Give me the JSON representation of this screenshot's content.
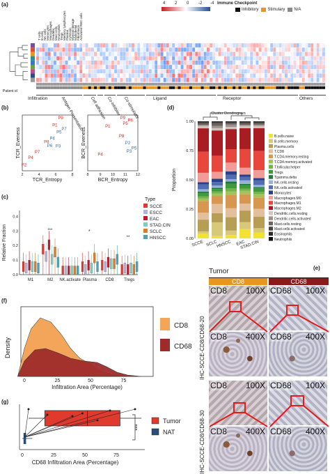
{
  "panels": {
    "a": "(a)",
    "b": "(b)",
    "c": "(c)",
    "d": "(d)",
    "e": "(e)",
    "f": "(f)",
    "g": "(g)"
  },
  "panel_a": {
    "scale_ticks": [
      "4",
      "2",
      "0",
      "-2",
      "-4"
    ],
    "legend_title": "Immune Checkpoint",
    "legend_items": [
      {
        "label": "Inhibitory",
        "color": "#111111"
      },
      {
        "label": "Stimulary",
        "color": "#e8961e"
      },
      {
        "label": "N/A",
        "color": "#8a8a8a"
      }
    ],
    "top_labels": [
      "T cells",
      "B cells",
      "NK cells",
      "Monocytes",
      "Macrophages",
      "Dendritic",
      "Mast cells",
      "Neutrophils",
      "Tregs",
      "Memory lymphocytes",
      "Plasma",
      "Cytotoxic",
      "Myeloid lineage",
      "Endothelial",
      "Fibroblasts",
      "Activated RBC cells"
    ],
    "patient_label": "Patient id",
    "groups": [
      "Infiltration",
      "Antigen Presentation",
      "Cell adhesion",
      "Co-inhibitor",
      "Co-stimulator",
      "Ligand",
      "Receptor",
      "Others"
    ]
  },
  "panel_b": {
    "left": {
      "xlabel": "TCR_Entropy",
      "ylabel": "TCR_Eveness",
      "xticks": [
        "2",
        "4",
        "6",
        "8"
      ],
      "points": [
        {
          "label": "P9",
          "x": 6.6,
          "y": 0.96,
          "group": "red"
        },
        {
          "label": "P1",
          "x": 5.9,
          "y": 0.82,
          "group": "red"
        },
        {
          "label": "P7",
          "x": 7.0,
          "y": 0.74,
          "group": "blue"
        },
        {
          "label": "P5",
          "x": 6.4,
          "y": 0.68,
          "group": "blue"
        },
        {
          "label": "P4",
          "x": 5.6,
          "y": 0.56,
          "group": "blue"
        },
        {
          "label": "P8",
          "x": 4.9,
          "y": 0.49,
          "group": "red"
        },
        {
          "label": "P6",
          "x": 5.3,
          "y": 0.42,
          "group": "blue"
        },
        {
          "label": "P3",
          "x": 6.3,
          "y": 0.41,
          "group": "blue"
        },
        {
          "label": "P7",
          "x": 3.8,
          "y": 0.3,
          "group": "red"
        },
        {
          "label": "P4",
          "x": 3.0,
          "y": 0.19,
          "group": "red"
        },
        {
          "label": "P2",
          "x": 2.2,
          "y": 0.05,
          "group": "red"
        }
      ]
    },
    "right": {
      "xlabel": "BCR_Entropy",
      "ylabel": "BCR_Eveness",
      "xticks": [
        "8",
        "9",
        "10",
        "11",
        "12"
      ],
      "points": [
        {
          "label": "P9",
          "x": 10.8,
          "y": 0.96,
          "group": "red"
        },
        {
          "label": "P6",
          "x": 11.4,
          "y": 0.91,
          "group": "red"
        },
        {
          "label": "P5",
          "x": 11.0,
          "y": 0.85,
          "group": "red"
        },
        {
          "label": "P1",
          "x": 9.6,
          "y": 0.8,
          "group": "red"
        },
        {
          "label": "P8",
          "x": 10.7,
          "y": 0.61,
          "group": "red"
        },
        {
          "label": "P2",
          "x": 11.2,
          "y": 0.47,
          "group": "blue"
        },
        {
          "label": "P5",
          "x": 11.7,
          "y": 0.37,
          "group": "blue"
        },
        {
          "label": "P3",
          "x": 11.3,
          "y": 0.31,
          "group": "blue"
        },
        {
          "label": "P4",
          "x": 9.0,
          "y": 0.25,
          "group": "red"
        }
      ]
    }
  },
  "panel_c": {
    "ylabel": "Relative Fraction",
    "legend_title": "Type",
    "types": [
      {
        "name": "SCCE",
        "color": "#e03a2e"
      },
      {
        "name": "ESCC",
        "color": "#b0b0d8"
      },
      {
        "name": "EAC",
        "color": "#c2182a"
      },
      {
        "name": "STAD.CIN",
        "color": "#7fcdbb"
      },
      {
        "name": "SCLC",
        "color": "#d97b27"
      },
      {
        "name": "HNSCC",
        "color": "#4aa3b8"
      }
    ],
    "categories": [
      "M1",
      "M2",
      "NK.activate",
      "Plasma",
      "CD8",
      "Tregs"
    ],
    "yticks": [
      "0.0",
      "0.1",
      "0.2",
      "0.3",
      "0.4"
    ]
  },
  "panel_d": {
    "title": "Cluster Dendrogram",
    "ylabel": "Proportion",
    "xlabel": "",
    "yticks": [
      "0.00",
      "0.25",
      "0.50",
      "0.75",
      "1.00"
    ],
    "categories": [
      "SCCE",
      "SCLC",
      "HNSCC",
      "EAC",
      "STAD.CIN"
    ],
    "legend": [
      {
        "name": "B.cells.naive",
        "color": "#f2e233"
      },
      {
        "name": "B.cells.memory",
        "color": "#d8c97a"
      },
      {
        "name": "Plasma.cells",
        "color": "#b79e55"
      },
      {
        "name": "T.CD8",
        "color": "#e3c09b"
      },
      {
        "name": "T.CD4.memory.resting",
        "color": "#d8974e"
      },
      {
        "name": "T.CD4.memory.activated",
        "color": "#a1c35a"
      },
      {
        "name": "T.follicular.helper",
        "color": "#72b34a"
      },
      {
        "name": "Tregs",
        "color": "#3e9a3d"
      },
      {
        "name": "Tgamma.delta",
        "color": "#1d7a3a"
      },
      {
        "name": "NK.cells.resting",
        "color": "#9ab0d8"
      },
      {
        "name": "NK.cells.activated",
        "color": "#4f6fb0"
      },
      {
        "name": "Monocytes",
        "color": "#2c3f8a"
      },
      {
        "name": "Macrophages.M0",
        "color": "#f29c97"
      },
      {
        "name": "Macrophages.M1",
        "color": "#e8473e"
      },
      {
        "name": "Macrophages.M2",
        "color": "#a81c22"
      },
      {
        "name": "Dendritic.cells.resting",
        "color": "#cfc5c0"
      },
      {
        "name": "Dendritic.cells.activated",
        "color": "#9e918b"
      },
      {
        "name": "Mast.cells.resting",
        "color": "#6b615c"
      },
      {
        "name": "Mast.cells.activated",
        "color": "#4a4441"
      },
      {
        "name": "Eosinophils",
        "color": "#2b2826"
      },
      {
        "name": "Neutrophils",
        "color": "#111111"
      }
    ]
  },
  "panel_e": {
    "tumor_label": "Tumor",
    "col1": "CD8",
    "col2": "CD68",
    "row1_side": "IHC-SCCE-CD8/CD68-20",
    "row2_side": "IHC-SCCE-CD8/CD68-30",
    "tiles": [
      {
        "lab": "CD8",
        "mag": "100X"
      },
      {
        "lab": "CD68",
        "mag": "100X"
      },
      {
        "lab": "CD8",
        "mag": "400X"
      },
      {
        "lab": "CD68",
        "mag": "400X"
      },
      {
        "lab": "CD8",
        "mag": "100X"
      },
      {
        "lab": "CD68",
        "mag": "100X"
      },
      {
        "lab": "CD8",
        "mag": "400X"
      },
      {
        "lab": "CD68",
        "mag": "400X"
      }
    ]
  },
  "panel_f": {
    "ylabel": "Density",
    "xlabel": "Infiltration Area (Percentage)",
    "xticks": [
      "0",
      "25",
      "50",
      "75"
    ],
    "legend": [
      {
        "name": "CD8",
        "color": "#f3a55a"
      },
      {
        "name": "CD68",
        "color": "#9e2b2b"
      }
    ]
  },
  "panel_g": {
    "xlabel": "CD68 Infiltration Area (Percentage)",
    "xticks": [
      "0",
      "25",
      "50",
      "75"
    ],
    "signif": "***",
    "legend": [
      {
        "name": "Tumor",
        "color": "#e03a2e"
      },
      {
        "name": "NAT",
        "color": "#2a4d7a"
      }
    ]
  }
}
